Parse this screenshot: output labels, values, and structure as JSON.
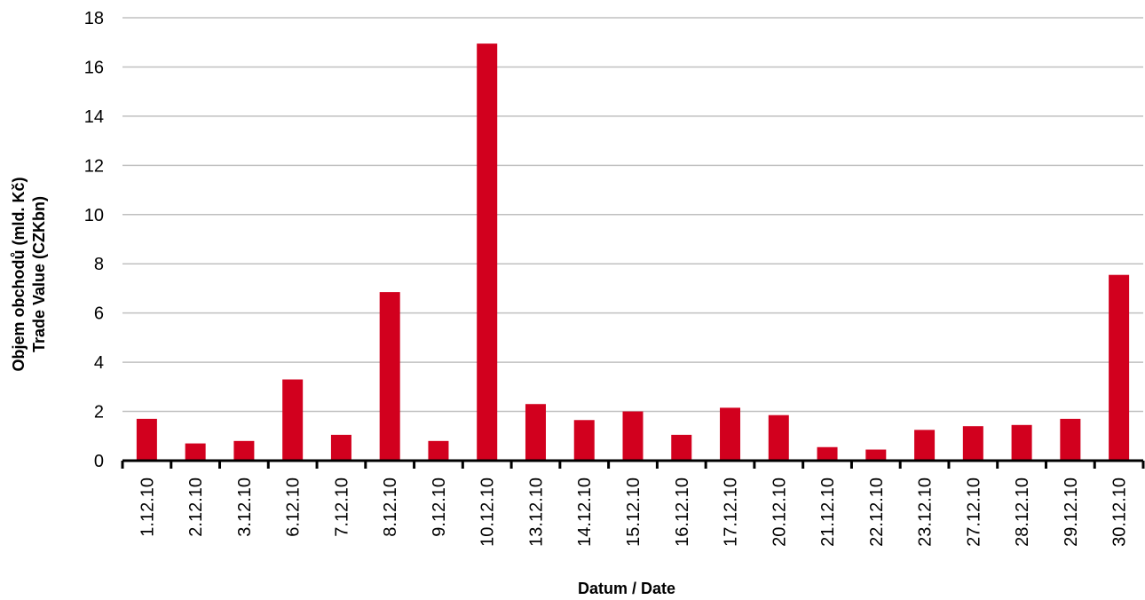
{
  "chart_data": {
    "type": "bar",
    "xlabel": "Datum / Date",
    "ylabel_line1": "Objem obchodů (mld. Kč)",
    "ylabel_line2": "Trade Value (CZKbn)",
    "categories": [
      "1.12.10",
      "2.12.10",
      "3.12.10",
      "6.12.10",
      "7.12.10",
      "8.12.10",
      "9.12.10",
      "10.12.10",
      "13.12.10",
      "14.12.10",
      "15.12.10",
      "16.12.10",
      "17.12.10",
      "20.12.10",
      "21.12.10",
      "22.12.10",
      "23.12.10",
      "27.12.10",
      "28.12.10",
      "29.12.10",
      "30.12.10"
    ],
    "values": [
      1.7,
      0.7,
      0.8,
      3.3,
      1.05,
      6.85,
      0.8,
      16.95,
      2.3,
      1.65,
      2.0,
      1.05,
      2.15,
      1.85,
      0.55,
      0.45,
      1.25,
      1.4,
      1.45,
      1.7,
      7.55
    ],
    "ylim": [
      0,
      18
    ],
    "yticks": [
      0,
      2,
      4,
      6,
      8,
      10,
      12,
      14,
      16,
      18
    ],
    "grid": true,
    "legend": "none",
    "bar_color": "#d2001e",
    "grid_color": "#c0c0c0"
  }
}
